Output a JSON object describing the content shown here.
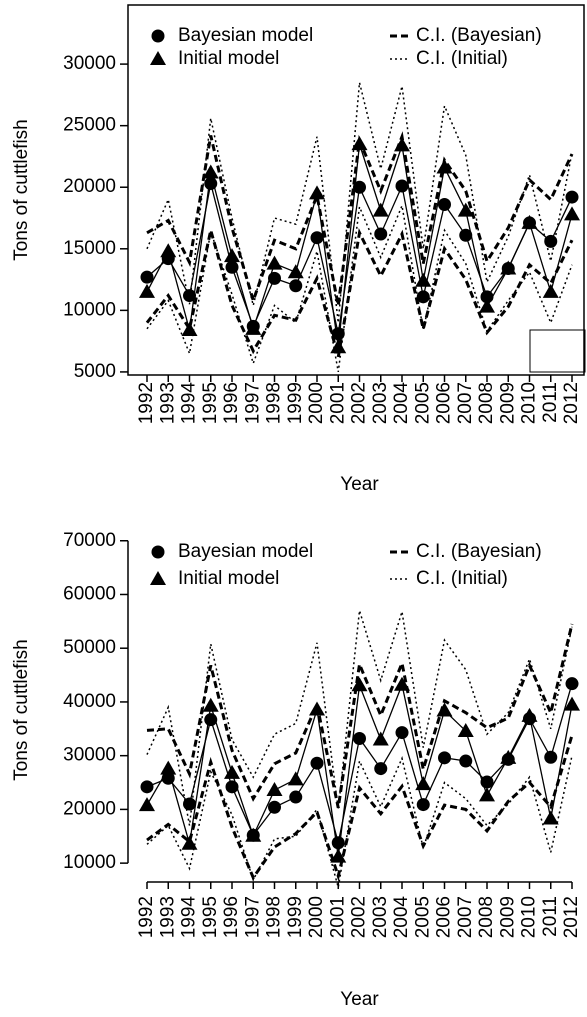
{
  "chart_data": [
    {
      "type": "line",
      "x_label": "Year",
      "y_label": "Tons of cuttlefish",
      "frame": true,
      "categories": [
        "1992",
        "1993",
        "1994",
        "1995",
        "1996",
        "1997",
        "1998",
        "1999",
        "2000",
        "2001",
        "2002",
        "2003",
        "2004",
        "2005",
        "2006",
        "2007",
        "2008",
        "2009",
        "2010",
        "2011",
        "2012"
      ],
      "ylim": [
        4750,
        34800
      ],
      "yticks": [
        5000,
        10000,
        15000,
        20000,
        25000,
        30000
      ],
      "series": [
        {
          "name": "Bayesian model",
          "color": "#000000",
          "marker": "circle",
          "values": [
            12700,
            14200,
            11200,
            20300,
            13500,
            8700,
            12600,
            12000,
            15900,
            8100,
            20000,
            16200,
            20100,
            11100,
            18600,
            16100,
            11100,
            13400,
            17100,
            15600,
            19200
          ]
        },
        {
          "name": "Initial model",
          "color": "#000000",
          "marker": "triangle",
          "values": [
            11500,
            14800,
            8400,
            21200,
            14400,
            8500,
            13800,
            13100,
            19500,
            7000,
            23500,
            18100,
            23400,
            12400,
            21600,
            18100,
            10300,
            13400,
            17100,
            11500,
            17800
          ]
        },
        {
          "name": "C.I. (Bayesian)",
          "color": "#000000",
          "style": "dashed",
          "upper": [
            16300,
            17300,
            13900,
            24200,
            16700,
            10800,
            15700,
            15000,
            19300,
            10400,
            23800,
            19700,
            24100,
            13800,
            22200,
            19700,
            14000,
            16700,
            20600,
            19000,
            22700
          ],
          "lower": [
            9000,
            11200,
            8500,
            16500,
            10400,
            6700,
            9600,
            9200,
            12600,
            6200,
            16300,
            12800,
            16200,
            8500,
            15000,
            12500,
            8200,
            10300,
            13700,
            12200,
            15700
          ]
        },
        {
          "name": "C.I. (Initial)",
          "color": "#000000",
          "style": "dotted",
          "upper": [
            15000,
            19000,
            10500,
            25600,
            17500,
            10400,
            17500,
            17000,
            24100,
            9000,
            28500,
            21500,
            28200,
            15000,
            26600,
            22600,
            12300,
            16000,
            21000,
            14000,
            22800
          ],
          "lower": [
            8500,
            10800,
            6500,
            16400,
            11300,
            5700,
            10400,
            9000,
            14800,
            5000,
            18400,
            14300,
            18500,
            8400,
            16500,
            13800,
            8300,
            10800,
            13100,
            9000,
            13700
          ]
        }
      ]
    },
    {
      "type": "line",
      "x_label": "Year",
      "y_label": "Tons of cuttlefish",
      "frame": false,
      "categories": [
        "1992",
        "1993",
        "1994",
        "1995",
        "1996",
        "1997",
        "1998",
        "1999",
        "2000",
        "2001",
        "2002",
        "2003",
        "2004",
        "2005",
        "2006",
        "2007",
        "2008",
        "2009",
        "2010",
        "2011",
        "2012"
      ],
      "ylim": [
        5000,
        72000
      ],
      "yticks": [
        10000,
        20000,
        30000,
        40000,
        50000,
        60000,
        70000
      ],
      "series": [
        {
          "name": "Bayesian model",
          "color": "#000000",
          "marker": "circle",
          "values": [
            24200,
            25800,
            21000,
            36700,
            24200,
            15200,
            20400,
            22300,
            28600,
            13800,
            33200,
            27600,
            34300,
            20900,
            29600,
            29000,
            25100,
            29300,
            36900,
            29700,
            43400
          ]
        },
        {
          "name": "Initial model",
          "color": "#000000",
          "marker": "triangle",
          "values": [
            20800,
            27600,
            13600,
            39300,
            26800,
            15100,
            23600,
            25600,
            38600,
            11200,
            43100,
            33000,
            43200,
            24700,
            38400,
            34600,
            22600,
            29600,
            37400,
            18300,
            39500
          ]
        },
        {
          "name": "C.I. (Bayesian)",
          "color": "#000000",
          "style": "dashed",
          "upper": [
            34700,
            35000,
            26600,
            46800,
            31000,
            22000,
            28500,
            30500,
            39500,
            20300,
            47000,
            37500,
            47200,
            27500,
            40200,
            38000,
            35200,
            37000,
            46800,
            38000,
            54500
          ],
          "lower": [
            14300,
            17200,
            14000,
            28800,
            16700,
            7300,
            13000,
            15500,
            19500,
            7600,
            24000,
            19200,
            24300,
            13200,
            20800,
            20000,
            16000,
            21500,
            25000,
            20500,
            33800
          ]
        },
        {
          "name": "C.I. (Initial)",
          "color": "#000000",
          "style": "dotted",
          "upper": [
            30200,
            39000,
            17000,
            50800,
            33000,
            26000,
            34000,
            36000,
            51000,
            20000,
            57000,
            44000,
            56800,
            31500,
            51500,
            46000,
            34000,
            38000,
            48000,
            35000,
            54000
          ],
          "lower": [
            13500,
            17000,
            9000,
            27000,
            19000,
            6900,
            14500,
            15000,
            20000,
            5500,
            29000,
            20500,
            29500,
            12800,
            25000,
            22000,
            17000,
            21000,
            26000,
            12000,
            30000
          ]
        }
      ]
    }
  ]
}
